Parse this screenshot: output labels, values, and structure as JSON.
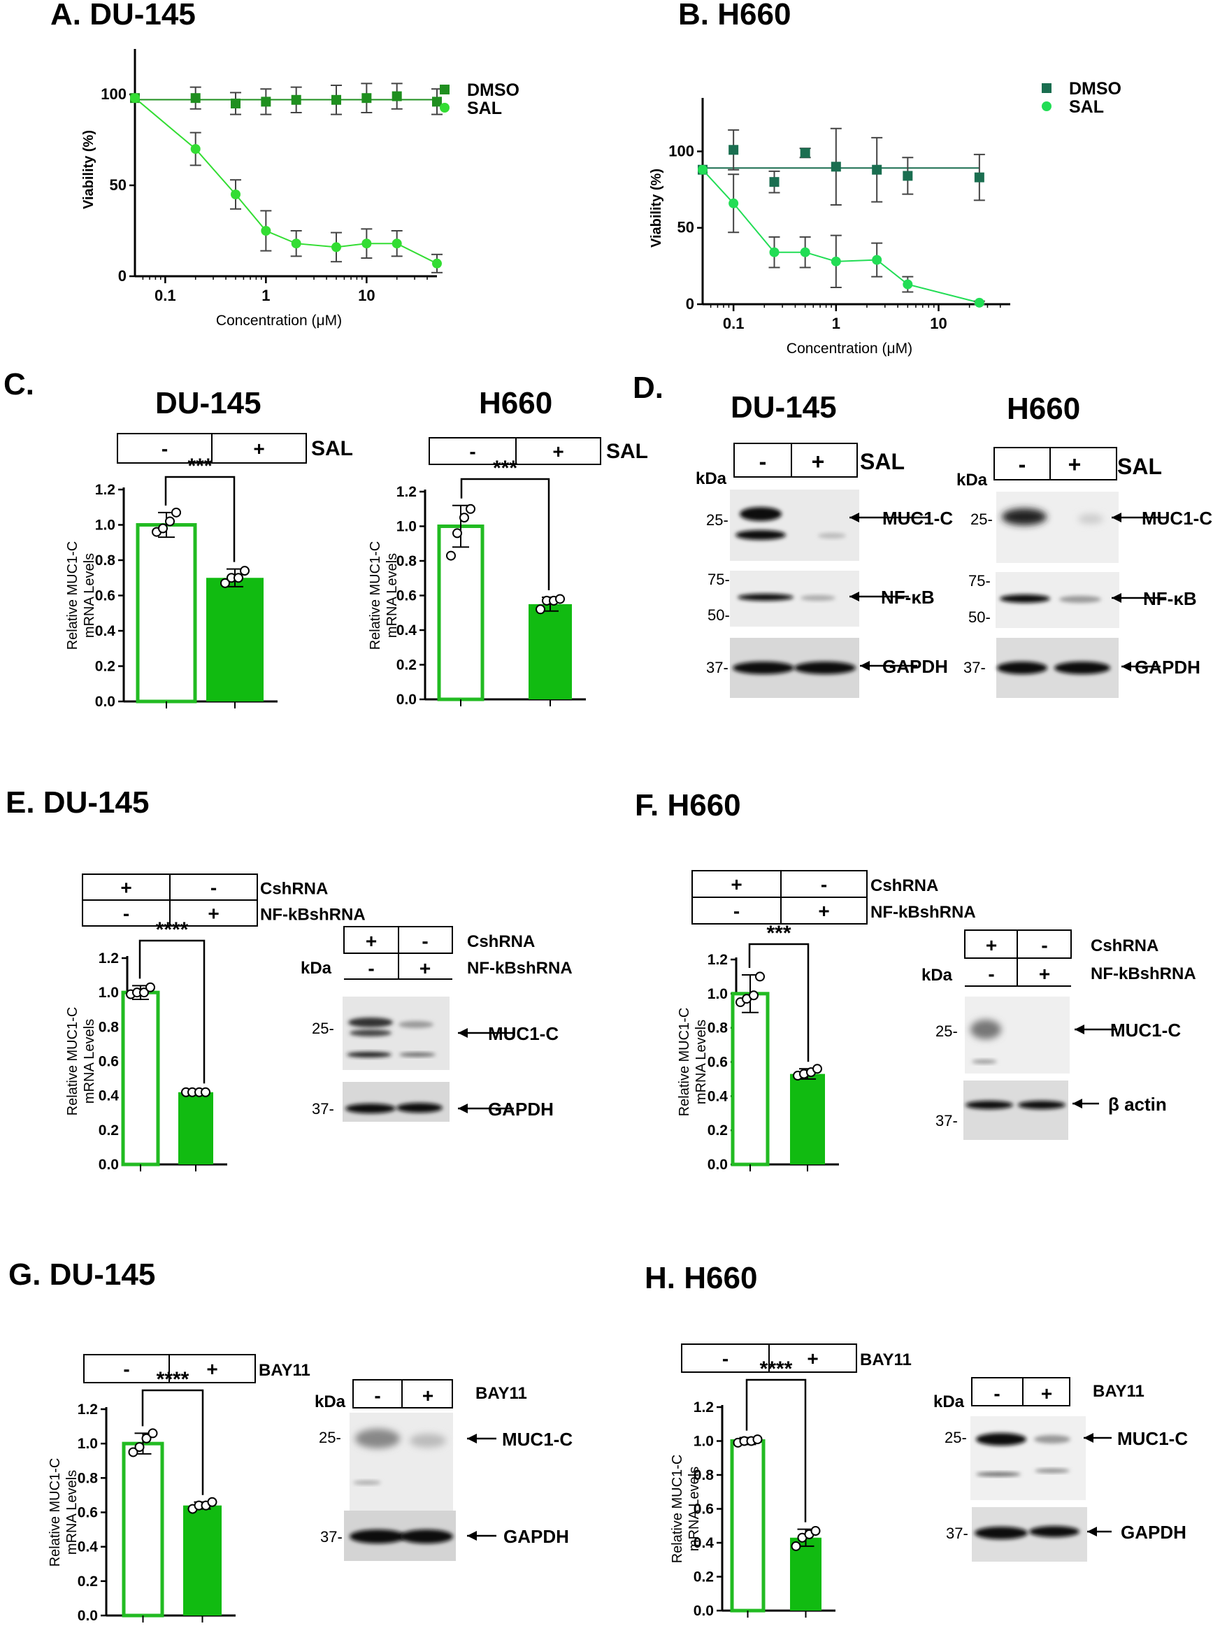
{
  "colors": {
    "green_dark": "#1a8c1a",
    "green_mid": "#2e9e2e",
    "green_teal": "#1a6e50",
    "green_light": "#22cc22",
    "bar_green": "#11bb11",
    "bar_outline": "#22bb22"
  },
  "panels": {
    "A": {
      "title": "A. DU-145"
    },
    "B": {
      "title": "B. H660"
    },
    "C": {
      "label": "C.",
      "title_du": "DU-145",
      "title_h": "H660"
    },
    "D": {
      "label": "D.",
      "title_du": "DU-145",
      "title_h": "H660"
    },
    "E": {
      "title": "E. DU-145"
    },
    "F": {
      "title": "F. H660"
    },
    "G": {
      "title": "G. DU-145"
    },
    "H": {
      "title": "H. H660"
    }
  },
  "blots": {
    "kda": "kDa",
    "minus": "-",
    "plus": "+",
    "sal": "SAL",
    "cshrna": "CshRNA",
    "nfkbshrna": "NF-kBshRNA",
    "bay11": "BAY11",
    "marker_25": "25-",
    "marker_75": "75-",
    "marker_50": "50-",
    "marker_37": "37-",
    "muc1c": "MUC1-C",
    "nfkb": "NF-κB",
    "gapdh": "GAPDH",
    "bactin": "β actin"
  },
  "chart_data": [
    {
      "id": "A",
      "type": "line",
      "title": "A. DU-145",
      "xlabel": "Concentration (μM)",
      "ylabel": "Viability (%)",
      "xscale": "log",
      "xlim": [
        0.05,
        50
      ],
      "ylim": [
        0,
        125
      ],
      "xticks": [
        0.1,
        1,
        10
      ],
      "xtick_labels": [
        "0.1",
        "1",
        "10"
      ],
      "yticks": [
        0,
        50,
        100
      ],
      "ytick_labels": [
        "0",
        "50",
        "100"
      ],
      "legend": "top-right",
      "series": [
        {
          "name": "DMSO",
          "marker": "square",
          "x": [
            0.05,
            0.2,
            0.5,
            1,
            2,
            5,
            10,
            20,
            50
          ],
          "y": [
            98,
            98,
            95,
            96,
            97,
            97,
            98,
            99,
            96
          ],
          "err": [
            0,
            6,
            6,
            7,
            7,
            8,
            8,
            7,
            7
          ]
        },
        {
          "name": "SAL",
          "marker": "circle",
          "x": [
            0.05,
            0.2,
            0.5,
            1,
            2,
            5,
            10,
            20,
            50
          ],
          "y": [
            98,
            70,
            45,
            25,
            18,
            16,
            18,
            18,
            7
          ],
          "err": [
            0,
            9,
            8,
            11,
            7,
            8,
            8,
            7,
            5
          ]
        }
      ]
    },
    {
      "id": "B",
      "type": "line",
      "title": "B. H660",
      "xlabel": "Concentration (μM)",
      "ylabel": "Viability (%)",
      "xscale": "log",
      "xlim": [
        0.05,
        50
      ],
      "ylim": [
        0,
        135
      ],
      "xticks": [
        0.1,
        1,
        10
      ],
      "xtick_labels": [
        "0.1",
        "1",
        "10"
      ],
      "yticks": [
        0,
        50,
        100
      ],
      "ytick_labels": [
        "0",
        "50",
        "100"
      ],
      "legend": "top-right",
      "series": [
        {
          "name": "DMSO",
          "marker": "square",
          "x": [
            0.05,
            0.1,
            0.25,
            0.5,
            1,
            2.5,
            5,
            25
          ],
          "y": [
            88,
            101,
            80,
            99,
            90,
            88,
            84,
            83
          ],
          "err": [
            0,
            13,
            7,
            3,
            25,
            21,
            12,
            15
          ]
        },
        {
          "name": "SAL",
          "marker": "circle",
          "x": [
            0.05,
            0.1,
            0.25,
            0.5,
            1,
            2.5,
            5,
            25
          ],
          "y": [
            88,
            66,
            34,
            34,
            28,
            29,
            13,
            1
          ],
          "err": [
            0,
            19,
            10,
            10,
            17,
            11,
            5,
            1
          ]
        }
      ]
    },
    {
      "id": "C-DU145",
      "type": "bar",
      "title": "DU-145",
      "ylabel": "Relative MUC1-C mRNA Levels",
      "ylim": [
        0,
        1.2
      ],
      "yticks": [
        0,
        0.2,
        0.4,
        0.6,
        0.8,
        1.0,
        1.2
      ],
      "ytick_labels": [
        "0.0",
        "0.2",
        "0.4",
        "0.6",
        "0.8",
        "1.0",
        "1.2"
      ],
      "conditions": [
        {
          "label": "SAL",
          "values": [
            "-",
            "+"
          ]
        }
      ],
      "significance": "***",
      "bars": [
        {
          "value": 1.0,
          "err": 0.07,
          "points": [
            0.96,
            0.98,
            1.02,
            1.07
          ],
          "style": "open"
        },
        {
          "value": 0.7,
          "err": 0.05,
          "points": [
            0.67,
            0.7,
            0.7,
            0.74
          ],
          "style": "filled"
        }
      ]
    },
    {
      "id": "C-H660",
      "type": "bar",
      "title": "H660",
      "ylabel": "Relative MUC1-C mRNA Levels",
      "ylim": [
        0,
        1.2
      ],
      "yticks": [
        0,
        0.2,
        0.4,
        0.6,
        0.8,
        1.0,
        1.2
      ],
      "ytick_labels": [
        "0.0",
        "0.2",
        "0.4",
        "0.6",
        "0.8",
        "1.0",
        "1.2"
      ],
      "conditions": [
        {
          "label": "SAL",
          "values": [
            "-",
            "+"
          ]
        }
      ],
      "significance": "***",
      "bars": [
        {
          "value": 1.0,
          "err": 0.12,
          "points": [
            0.83,
            0.96,
            1.05,
            1.1
          ],
          "style": "open"
        },
        {
          "value": 0.55,
          "err": 0.04,
          "points": [
            0.52,
            0.57,
            0.57,
            0.58
          ],
          "style": "filled"
        }
      ]
    },
    {
      "id": "E",
      "type": "bar",
      "title": "E. DU-145",
      "ylabel": "Relative MUC1-C mRNA Levels",
      "ylim": [
        0,
        1.2
      ],
      "yticks": [
        0,
        0.2,
        0.4,
        0.6,
        0.8,
        1.0,
        1.2
      ],
      "ytick_labels": [
        "0.0",
        "0.2",
        "0.4",
        "0.6",
        "0.8",
        "1.0",
        "1.2"
      ],
      "conditions": [
        {
          "label": "CshRNA",
          "values": [
            "+",
            "-"
          ]
        },
        {
          "label": "NF-kBshRNA",
          "values": [
            "-",
            "+"
          ]
        }
      ],
      "significance": "****",
      "bars": [
        {
          "value": 1.0,
          "err": 0.04,
          "points": [
            0.99,
            1.0,
            1.0,
            1.03
          ],
          "style": "open"
        },
        {
          "value": 0.42,
          "err": 0.01,
          "points": [
            0.42,
            0.42,
            0.42,
            0.42
          ],
          "style": "filled"
        }
      ]
    },
    {
      "id": "F",
      "type": "bar",
      "title": "F. H660",
      "ylabel": "Relative MUC1-C mRNA Levels",
      "ylim": [
        0,
        1.2
      ],
      "yticks": [
        0,
        0.2,
        0.4,
        0.6,
        0.8,
        1.0,
        1.2
      ],
      "ytick_labels": [
        "0.0",
        "0.2",
        "0.4",
        "0.6",
        "0.8",
        "1.0",
        "1.2"
      ],
      "conditions": [
        {
          "label": "CshRNA",
          "values": [
            "+",
            "-"
          ]
        },
        {
          "label": "NF-kBshRNA",
          "values": [
            "-",
            "+"
          ]
        }
      ],
      "significance": "***",
      "bars": [
        {
          "value": 1.0,
          "err": 0.11,
          "points": [
            0.95,
            0.97,
            0.99,
            1.1
          ],
          "style": "open"
        },
        {
          "value": 0.53,
          "err": 0.03,
          "points": [
            0.52,
            0.53,
            0.54,
            0.56
          ],
          "style": "filled"
        }
      ]
    },
    {
      "id": "G",
      "type": "bar",
      "title": "G. DU-145",
      "ylabel": "Relative MUC1-C mRNA Levels",
      "ylim": [
        0,
        1.2
      ],
      "yticks": [
        0,
        0.2,
        0.4,
        0.6,
        0.8,
        1.0,
        1.2
      ],
      "ytick_labels": [
        "0.0",
        "0.2",
        "0.4",
        "0.6",
        "0.8",
        "1.0",
        "1.2"
      ],
      "conditions": [
        {
          "label": "BAY11",
          "values": [
            "-",
            "+"
          ]
        }
      ],
      "significance": "****",
      "bars": [
        {
          "value": 1.0,
          "err": 0.06,
          "points": [
            0.95,
            0.98,
            1.03,
            1.06
          ],
          "style": "open"
        },
        {
          "value": 0.64,
          "err": 0.02,
          "points": [
            0.62,
            0.64,
            0.64,
            0.66
          ],
          "style": "filled"
        }
      ]
    },
    {
      "id": "H",
      "type": "bar",
      "title": "H. H660",
      "ylabel": "Relative MUC1-C mRNA Levels",
      "ylim": [
        0,
        1.2
      ],
      "yticks": [
        0,
        0.2,
        0.4,
        0.6,
        0.8,
        1.0,
        1.2
      ],
      "ytick_labels": [
        "0.0",
        "0.2",
        "0.4",
        "0.6",
        "0.8",
        "1.0",
        "1.2"
      ],
      "conditions": [
        {
          "label": "BAY11",
          "values": [
            "-",
            "+"
          ]
        }
      ],
      "significance": "****",
      "bars": [
        {
          "value": 1.0,
          "err": 0.02,
          "points": [
            0.99,
            1.0,
            1.0,
            1.01
          ],
          "style": "open"
        },
        {
          "value": 0.43,
          "err": 0.05,
          "points": [
            0.38,
            0.43,
            0.45,
            0.47
          ],
          "style": "filled"
        }
      ]
    }
  ]
}
